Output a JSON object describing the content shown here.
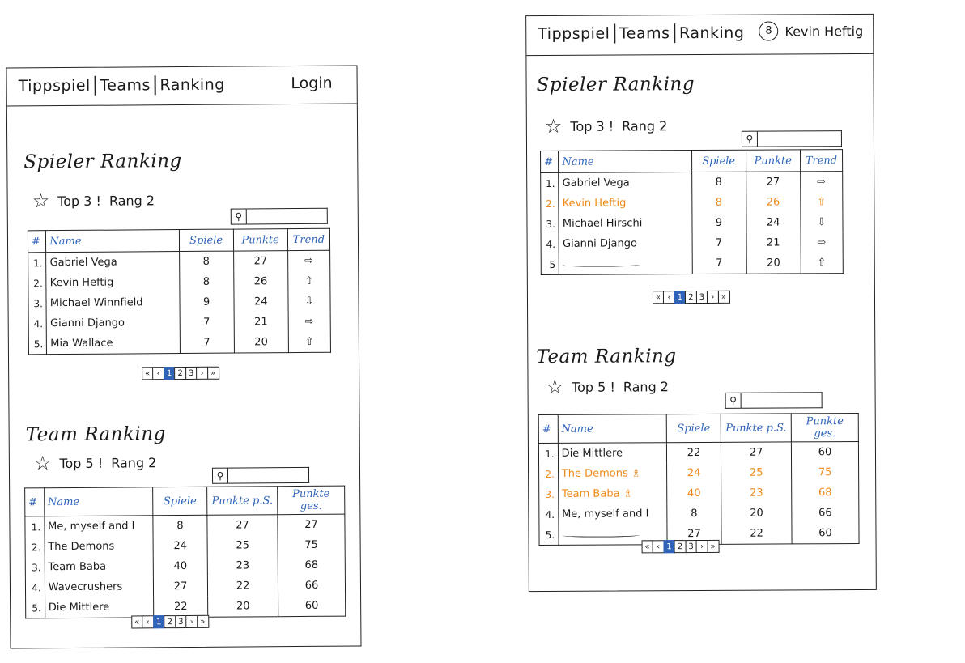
{
  "left": {
    "nav": {
      "links": [
        "Tippspiel",
        "Teams",
        "Ranking"
      ],
      "login": "Login"
    },
    "player": {
      "title": "Spieler Ranking",
      "top": "Top 3 !",
      "rank": "Rang 2",
      "headers": [
        "#",
        "Name",
        "Spiele",
        "Punkte",
        "Trend"
      ],
      "rows": [
        {
          "rank": "1.",
          "name": "Gabriel Vega",
          "games": "8",
          "points": "27",
          "trend": "⇨"
        },
        {
          "rank": "2.",
          "name": "Kevin Heftig",
          "games": "8",
          "points": "26",
          "trend": "⇧"
        },
        {
          "rank": "3.",
          "name": "Michael Winnfield",
          "games": "9",
          "points": "24",
          "trend": "⇩"
        },
        {
          "rank": "4.",
          "name": "Gianni Django",
          "games": "7",
          "points": "21",
          "trend": "⇨"
        },
        {
          "rank": "5.",
          "name": "Mia Wallace",
          "games": "7",
          "points": "20",
          "trend": "⇧"
        }
      ]
    },
    "team": {
      "title": "Team Ranking",
      "top": "Top 5 !",
      "rank": "Rang 2",
      "headers": [
        "#",
        "Name",
        "Spiele",
        "Punkte p.S.",
        "Punkte ges."
      ],
      "rows": [
        {
          "rank": "1.",
          "name": "Me, myself and I",
          "games": "8",
          "pps": "27",
          "total": "27"
        },
        {
          "rank": "2.",
          "name": "The Demons",
          "games": "24",
          "pps": "25",
          "total": "75"
        },
        {
          "rank": "3.",
          "name": "Team Baba",
          "games": "40",
          "pps": "23",
          "total": "68"
        },
        {
          "rank": "4.",
          "name": "Wavecrushers",
          "games": "27",
          "pps": "22",
          "total": "66"
        },
        {
          "rank": "5.",
          "name": "Die Mittlere",
          "games": "22",
          "pps": "20",
          "total": "60"
        }
      ]
    }
  },
  "right": {
    "nav": {
      "links": [
        "Tippspiel",
        "Teams",
        "Ranking"
      ],
      "user_initial": "8",
      "user_name": "Kevin Heftig"
    },
    "player": {
      "title": "Spieler Ranking",
      "top": "Top 3 !",
      "rank": "Rang 2",
      "headers": [
        "#",
        "Name",
        "Spiele",
        "Punkte",
        "Trend"
      ],
      "rows": [
        {
          "rank": "1.",
          "name": "Gabriel Vega",
          "games": "8",
          "points": "27",
          "trend": "⇨"
        },
        {
          "rank": "2.",
          "name": "Kevin Heftig",
          "games": "8",
          "points": "26",
          "trend": "⇧",
          "highlight": true
        },
        {
          "rank": "3.",
          "name": "Michael Hirschi",
          "games": "9",
          "points": "24",
          "trend": "⇩"
        },
        {
          "rank": "4.",
          "name": "Gianni Django",
          "games": "7",
          "points": "21",
          "trend": "⇨"
        },
        {
          "rank": "5",
          "name": "",
          "games": "7",
          "points": "20",
          "trend": "⇧",
          "squiggle": true
        }
      ]
    },
    "team": {
      "title": "Team Ranking",
      "top": "Top 5 !",
      "rank": "Rang 2",
      "headers": [
        "#",
        "Name",
        "Spiele",
        "Punkte p.S.",
        "Punkte ges."
      ],
      "rows": [
        {
          "rank": "1.",
          "name": "Die Mittlere",
          "games": "22",
          "pps": "27",
          "total": "60"
        },
        {
          "rank": "2.",
          "name": "The Demons ♗",
          "games": "24",
          "pps": "25",
          "total": "75",
          "highlight": true
        },
        {
          "rank": "3.",
          "name": "Team Baba ♗",
          "games": "40",
          "pps": "23",
          "total": "68",
          "highlight": true
        },
        {
          "rank": "4.",
          "name": "Me, myself and I",
          "games": "8",
          "pps": "20",
          "total": "66"
        },
        {
          "rank": "5.",
          "name": "",
          "games": "27",
          "pps": "22",
          "total": "60",
          "squiggle": true
        }
      ]
    }
  },
  "pager": {
    "labels": [
      "«",
      "‹",
      "1",
      "2",
      "3",
      "›",
      "»"
    ],
    "active": "1"
  },
  "colors": {
    "accent": "#2f63b8",
    "highlight": "#ef8a1a"
  }
}
